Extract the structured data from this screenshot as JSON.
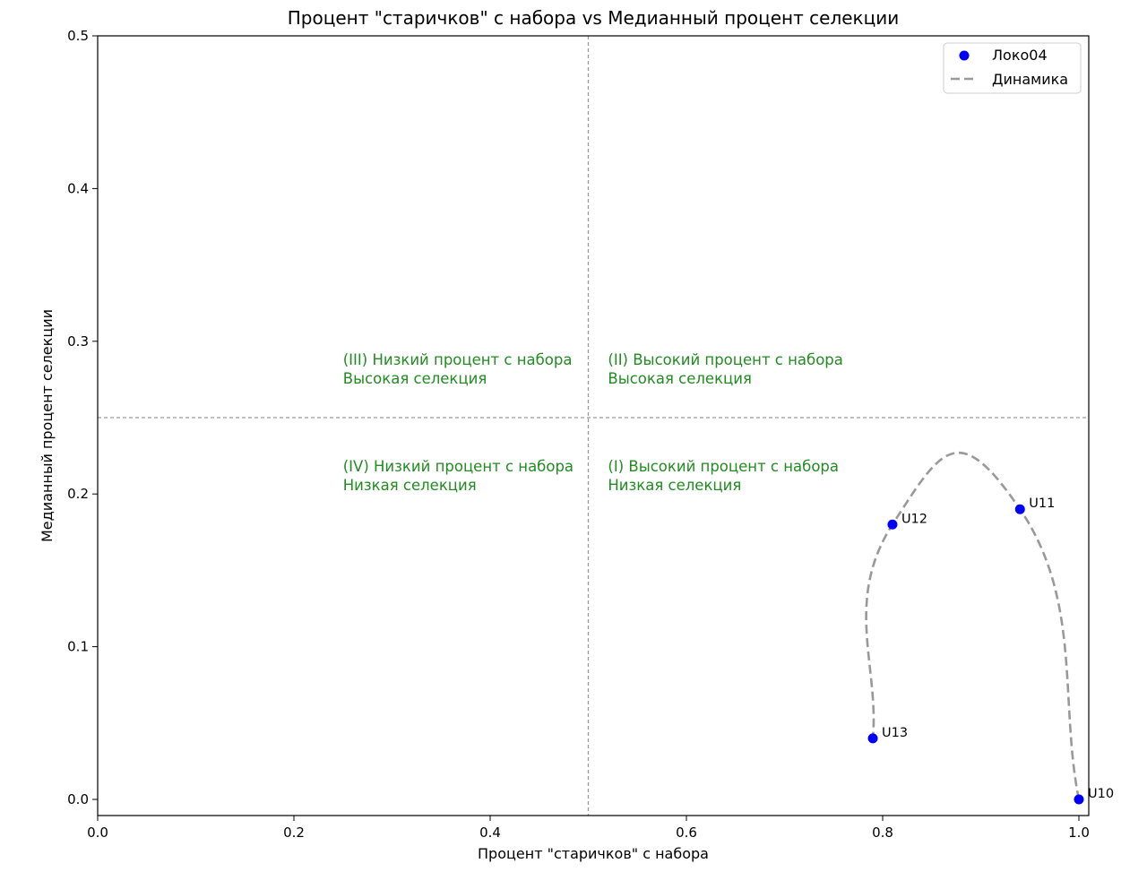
{
  "chart_data": {
    "type": "scatter",
    "title": "Процент \"старичков\" с набора vs Медианный процент селекции",
    "xlabel": "Процент \"старичков\" с набора",
    "ylabel": "Медианный процент селекции",
    "xlim": [
      0.0,
      1.0
    ],
    "ylim": [
      -0.01,
      0.5
    ],
    "xticks": [
      0.0,
      0.2,
      0.4,
      0.6,
      0.8,
      1.0
    ],
    "xtick_labels": [
      "0.0",
      "0.2",
      "0.4",
      "0.6",
      "0.8",
      "1.0"
    ],
    "yticks": [
      0.0,
      0.1,
      0.2,
      0.3,
      0.4,
      0.5
    ],
    "ytick_labels": [
      "0.0",
      "0.1",
      "0.2",
      "0.3",
      "0.4",
      "0.5"
    ],
    "grid": false,
    "legend_position": "top-right",
    "series": [
      {
        "name": "Локо04",
        "kind": "scatter",
        "color": "#0000ff",
        "points": [
          {
            "label": "U10",
            "x": 1.0,
            "y": 0.0
          },
          {
            "label": "U11",
            "x": 0.94,
            "y": 0.19
          },
          {
            "label": "U12",
            "x": 0.81,
            "y": 0.18
          },
          {
            "label": "U13",
            "x": 0.79,
            "y": 0.04
          }
        ]
      },
      {
        "name": "Динамика",
        "kind": "dashed-curve",
        "color": "#999999"
      }
    ],
    "reference_lines": [
      {
        "axis": "x",
        "value": 0.5,
        "color": "#999999",
        "style": "dashed"
      },
      {
        "axis": "y",
        "value": 0.25,
        "color": "#999999",
        "style": "dashed"
      }
    ],
    "annotations": [
      {
        "lines": [
          "(III) Низкий процент с набора",
          "Высокая селекция"
        ],
        "x": 0.25,
        "y": 0.28,
        "color": "#228b22"
      },
      {
        "lines": [
          "(II) Высокий процент с набора",
          "Высокая селекция"
        ],
        "x": 0.52,
        "y": 0.28,
        "color": "#228b22"
      },
      {
        "lines": [
          "(IV) Низкий процент с набора",
          "Низкая селекция"
        ],
        "x": 0.25,
        "y": 0.21,
        "color": "#228b22"
      },
      {
        "lines": [
          "(I) Высокий процент с набора",
          "Низкая селекция"
        ],
        "x": 0.52,
        "y": 0.21,
        "color": "#228b22"
      }
    ]
  }
}
